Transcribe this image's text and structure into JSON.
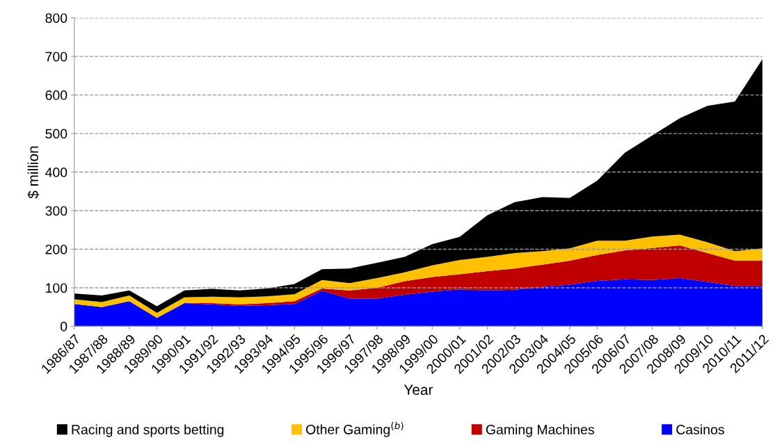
{
  "chart_data": {
    "type": "area",
    "stacked": true,
    "xlabel": "Year",
    "ylabel": "$ million",
    "categories": [
      "1986/87",
      "1987/88",
      "1988/89",
      "1989/90",
      "1990/91",
      "1991/92",
      "1992/93",
      "1993/94",
      "1994/95",
      "1995/96",
      "1996/97",
      "1997/98",
      "1998/99",
      "1999/00",
      "2000/01",
      "2001/02",
      "2002/03",
      "2003/04",
      "2004/05",
      "2005/06",
      "2006/07",
      "2007/08",
      "2008/09",
      "2009/10",
      "2010/11",
      "2011/12"
    ],
    "series": [
      {
        "name": "Casinos",
        "color": "#0000ff",
        "values": [
          58,
          50,
          65,
          22,
          60,
          57,
          53,
          55,
          58,
          92,
          72,
          72,
          82,
          90,
          96,
          93,
          95,
          102,
          108,
          118,
          122,
          120,
          125,
          115,
          105,
          105
        ]
      },
      {
        "name": "Gaming Machines",
        "color": "#c00000",
        "values": [
          0,
          0,
          0,
          0,
          0,
          3,
          4,
          5,
          7,
          6,
          21,
          28,
          35,
          38,
          39,
          50,
          55,
          58,
          62,
          67,
          75,
          83,
          85,
          75,
          65,
          65
        ]
      },
      {
        "name": "Other Gaming$^{(b)}$",
        "color": "#ffc000",
        "values": [
          12,
          13,
          15,
          13,
          15,
          17,
          18,
          18,
          18,
          22,
          19,
          25,
          23,
          30,
          37,
          37,
          40,
          35,
          32,
          37,
          25,
          30,
          28,
          28,
          25,
          32
        ]
      },
      {
        "name": "Racing and sports betting",
        "color": "#000000",
        "values": [
          15,
          17,
          13,
          17,
          18,
          20,
          18,
          20,
          27,
          28,
          38,
          40,
          40,
          55,
          60,
          108,
          132,
          140,
          131,
          156,
          228,
          262,
          302,
          354,
          388,
          491
        ]
      }
    ],
    "ylim": [
      0,
      800
    ],
    "yticks": [
      0,
      100,
      200,
      300,
      400,
      500,
      600,
      700,
      800
    ],
    "grid": "y",
    "legend": "bottom"
  }
}
